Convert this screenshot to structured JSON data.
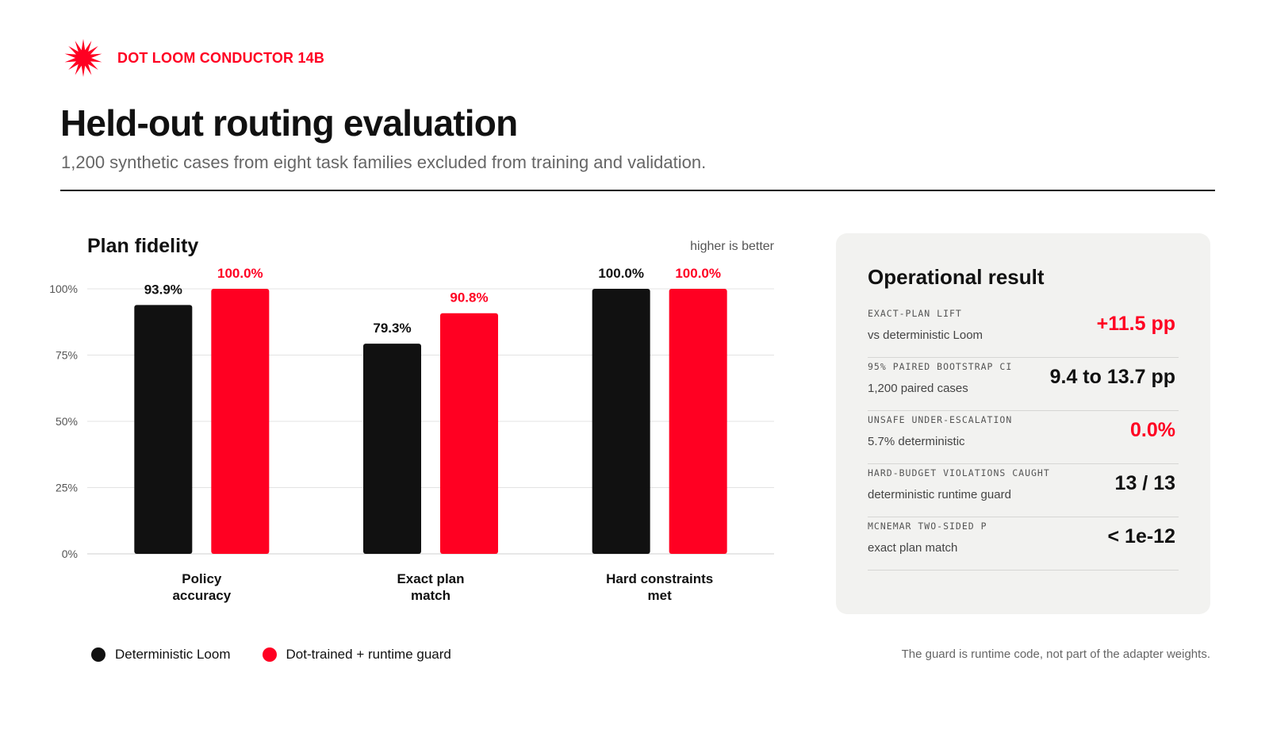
{
  "brand": {
    "name": "DOT LOOM CONDUCTOR 14B",
    "icon": "starburst-logo-icon",
    "color": "#ff0022"
  },
  "header": {
    "title": "Held-out routing evaluation",
    "subtitle": "1,200 synthetic cases from eight task families excluded from training and validation."
  },
  "chart_data": {
    "type": "bar",
    "title": "Plan fidelity",
    "note": "higher is better",
    "categories": [
      [
        "Policy",
        "accuracy"
      ],
      [
        "Exact plan",
        "match"
      ],
      [
        "Hard constraints",
        "met"
      ]
    ],
    "series": [
      {
        "name": "Deterministic Loom",
        "color": "#111111",
        "values": [
          93.9,
          79.3,
          100.0
        ],
        "labels": [
          "93.9%",
          "79.3%",
          "100.0%"
        ]
      },
      {
        "name": "Dot-trained + runtime guard",
        "color": "#ff0022",
        "values": [
          100.0,
          90.8,
          100.0
        ],
        "labels": [
          "100.0%",
          "90.8%",
          "100.0%"
        ]
      }
    ],
    "y_ticks": [
      0,
      25,
      50,
      75,
      100
    ],
    "y_tick_labels": [
      "0%",
      "25%",
      "50%",
      "75%",
      "100%"
    ],
    "ylim": [
      0,
      100
    ],
    "grid": true,
    "legend_position": "bottom-left"
  },
  "footnote": "The guard is runtime code, not part of the adapter weights.",
  "panel": {
    "title": "Operational result",
    "metrics": [
      {
        "label": "EXACT-PLAN LIFT",
        "desc": "vs deterministic Loom",
        "value": "+11.5 pp",
        "accent": true
      },
      {
        "label": "95% PAIRED BOOTSTRAP CI",
        "desc": "1,200 paired cases",
        "value": "9.4 to 13.7 pp",
        "accent": false
      },
      {
        "label": "UNSAFE UNDER-ESCALATION",
        "desc": "5.7% deterministic",
        "value": "0.0%",
        "accent": true
      },
      {
        "label": "HARD-BUDGET VIOLATIONS CAUGHT",
        "desc": "deterministic runtime guard",
        "value": "13 / 13",
        "accent": false
      },
      {
        "label": "MCNEMAR TWO-SIDED P",
        "desc": "exact plan match",
        "value": "< 1e-12",
        "accent": false
      }
    ]
  }
}
